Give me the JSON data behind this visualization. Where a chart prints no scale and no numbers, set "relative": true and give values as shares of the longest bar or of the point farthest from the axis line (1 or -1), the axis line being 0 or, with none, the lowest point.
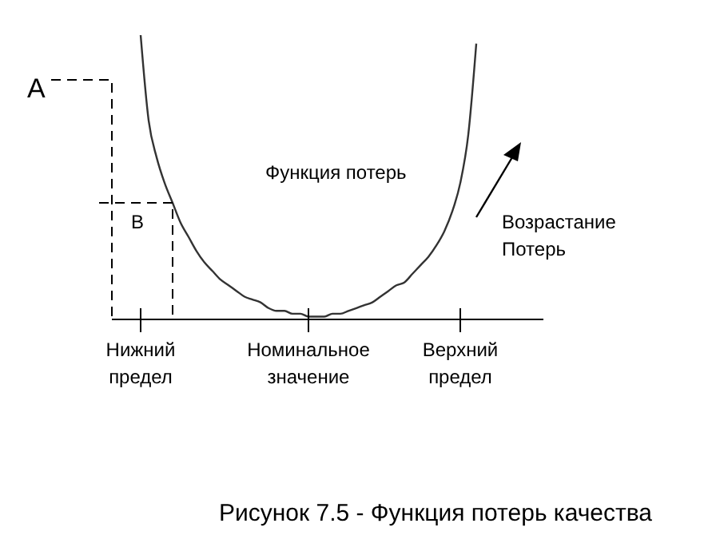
{
  "chart_data": {
    "type": "line",
    "relative": true,
    "title": "Рисунок 7.5 - Функция потерь качества",
    "annotations": [
      "A",
      "B",
      "Функция потерь",
      "Возрастание Потерь"
    ],
    "categories": [
      "Нижний предел",
      null,
      null,
      null,
      null,
      null,
      null,
      null,
      null,
      null,
      null,
      null,
      null,
      null,
      null,
      null,
      null,
      null,
      null,
      null,
      null,
      "Номинальное значение",
      null,
      null,
      null,
      null,
      null,
      null,
      null,
      null,
      null,
      null,
      null,
      null,
      null,
      null,
      null,
      null,
      null,
      null,
      "Верхний предел",
      null,
      null
    ],
    "series": [
      {
        "color": "#333333",
        "values": [
          1,
          0.7,
          0.57,
          0.48,
          0.41,
          0.34,
          0.29,
          0.24,
          0.2,
          0.17,
          0.14,
          0.12,
          0.1,
          0.08,
          0.07,
          0.06,
          0.04,
          0.03,
          0.03,
          0.02,
          0.02,
          0.01,
          0.01,
          0.01,
          0.02,
          0.02,
          0.03,
          0.04,
          0.05,
          0.06,
          0.08,
          0.1,
          0.12,
          0.13,
          0.16,
          0.19,
          0.22,
          0.26,
          0.31,
          0.38,
          0.48,
          0.65,
          0.97
        ]
      }
    ],
    "marker": "none",
    "line_style": "solid"
  }
}
